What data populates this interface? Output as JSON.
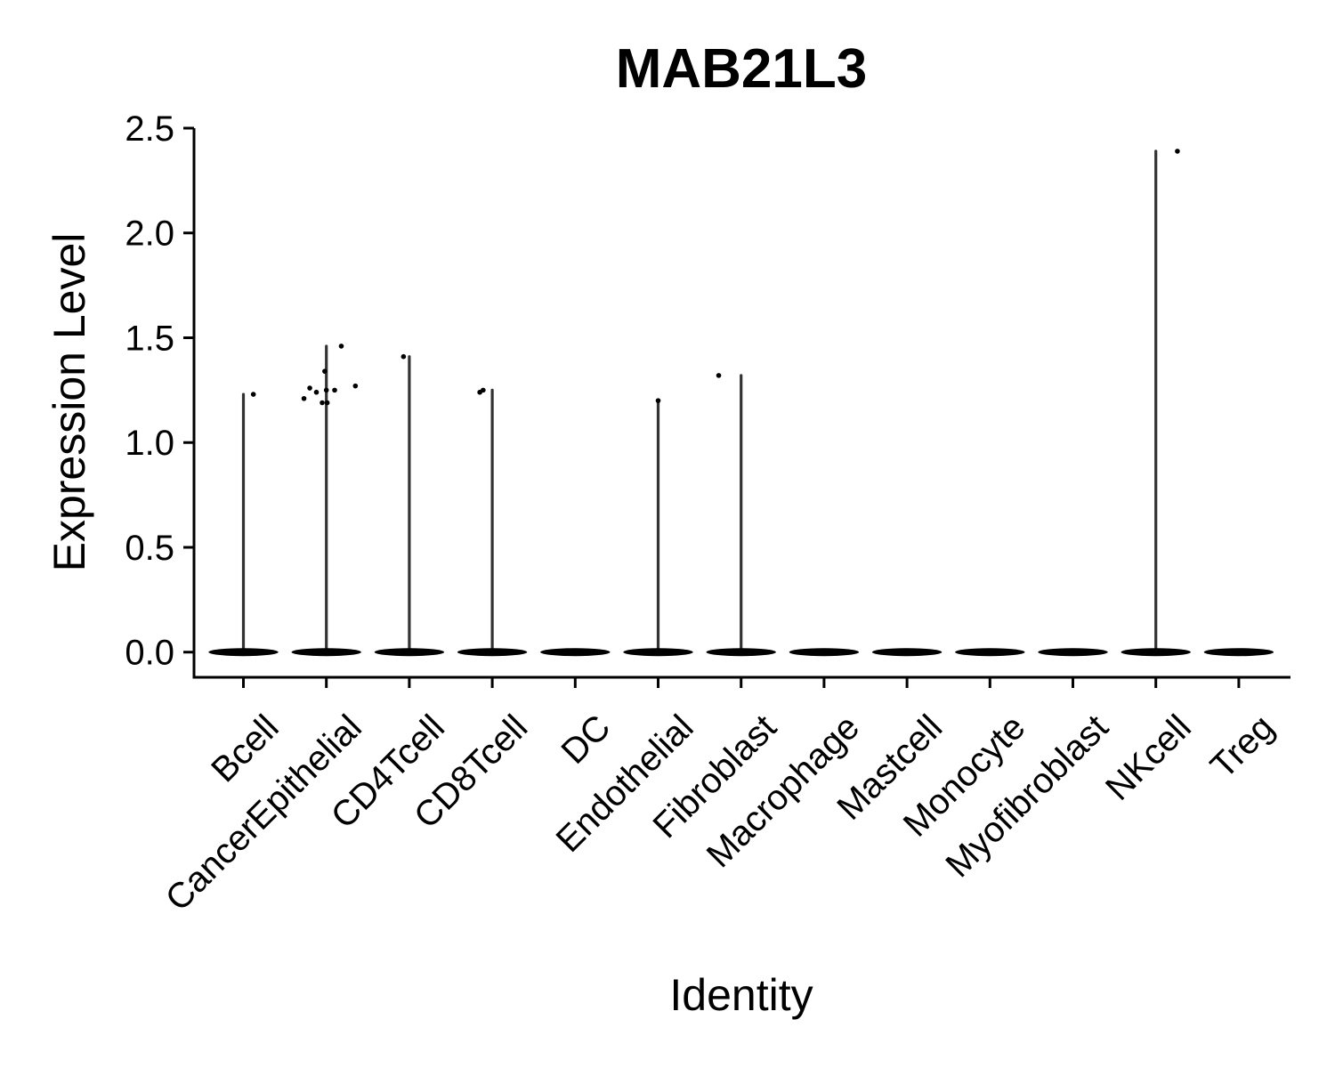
{
  "chart_data": {
    "type": "violin",
    "title": "MAB21L3",
    "xlabel": "Identity",
    "ylabel": "Expression Level",
    "ylim": [
      -0.12,
      2.5
    ],
    "yticks": [
      "0.0",
      "0.5",
      "1.0",
      "1.5",
      "2.0",
      "2.5"
    ],
    "ytick_values": [
      0,
      0.5,
      1.0,
      1.5,
      2.0,
      2.5
    ],
    "grid": false,
    "legend": "none",
    "colors": {
      "violin": "#333333",
      "point": "#000000",
      "axis": "#000000"
    },
    "categories": [
      "Bcell",
      "CancerEpithelial",
      "CD4Tcell",
      "CD8Tcell",
      "DC",
      "Endothelial",
      "Fibroblast",
      "Macrophage",
      "Mastcell",
      "Monocyte",
      "Myofibroblast",
      "NKcell",
      "Treg"
    ],
    "max_values": [
      1.23,
      1.46,
      1.41,
      1.25,
      0,
      1.2,
      1.32,
      0,
      0,
      0,
      0,
      2.39,
      0
    ],
    "points": [
      {
        "category": "Bcell",
        "jitter": 0.12,
        "value": 1.23
      },
      {
        "category": "CancerEpithelial",
        "jitter": -0.27,
        "value": 1.21
      },
      {
        "category": "CancerEpithelial",
        "jitter": -0.2,
        "value": 1.26
      },
      {
        "category": "CancerEpithelial",
        "jitter": -0.12,
        "value": 1.24
      },
      {
        "category": "CancerEpithelial",
        "jitter": -0.05,
        "value": 1.19
      },
      {
        "category": "CancerEpithelial",
        "jitter": -0.02,
        "value": 1.34
      },
      {
        "category": "CancerEpithelial",
        "jitter": 0.0,
        "value": 1.25
      },
      {
        "category": "CancerEpithelial",
        "jitter": 0.01,
        "value": 1.19
      },
      {
        "category": "CancerEpithelial",
        "jitter": 0.1,
        "value": 1.25
      },
      {
        "category": "CancerEpithelial",
        "jitter": 0.18,
        "value": 1.46
      },
      {
        "category": "CancerEpithelial",
        "jitter": 0.35,
        "value": 1.27
      },
      {
        "category": "CD4Tcell",
        "jitter": -0.07,
        "value": 1.41
      },
      {
        "category": "CD8Tcell",
        "jitter": -0.15,
        "value": 1.24
      },
      {
        "category": "CD8Tcell",
        "jitter": -0.11,
        "value": 1.25
      },
      {
        "category": "Endothelial",
        "jitter": 0.0,
        "value": 1.2
      },
      {
        "category": "Fibroblast",
        "jitter": -0.27,
        "value": 1.32
      },
      {
        "category": "NKcell",
        "jitter": 0.26,
        "value": 2.39
      }
    ]
  }
}
